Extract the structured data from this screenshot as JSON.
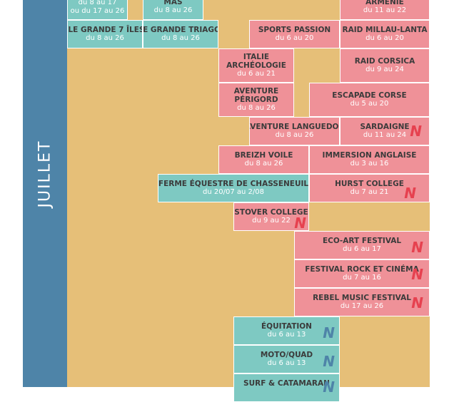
{
  "month": "JUILLET",
  "new_marker": "N",
  "colors": {
    "month_bar": "#4e84a8",
    "background": "#e6bf78",
    "pink": "#ef9198",
    "teal": "#7ec9c2",
    "new_red": "#e6414f",
    "new_blue": "#4e84a8"
  },
  "cards": [
    {
      "title": "",
      "dates": [
        "du 8 au 17",
        "ou du 17 au 26"
      ]
    },
    {
      "title": "MAS",
      "dates": [
        "du 8 au 26"
      ]
    },
    {
      "title": "ARMÉNIE",
      "dates": [
        "du 11 au 22"
      ]
    },
    {
      "title": "ÎLE GRANDE 7 ÎLES",
      "dates": [
        "du 8 au 26"
      ]
    },
    {
      "title": "ÎLE GRANDE TRIAGOZ",
      "dates": [
        "du 8 au 26"
      ]
    },
    {
      "title": "SPORTS PASSION",
      "dates": [
        "du 6 au 20"
      ]
    },
    {
      "title": "RAID MILLAU-LANTA",
      "dates": [
        "du 6 au 20"
      ]
    },
    {
      "title": "ITALIE ARCHÉOLOGIE",
      "title_lines": [
        "ITALIE",
        "ARCHÉOLOGIE"
      ],
      "dates": [
        "du 6 au 21"
      ]
    },
    {
      "title": "RAID CORSICA",
      "dates": [
        "du 9 au 24"
      ]
    },
    {
      "title": "AVENTURE PÉRIGORD",
      "title_lines": [
        "AVENTURE",
        "PÉRIGORD"
      ],
      "dates": [
        "du 8 au 26"
      ]
    },
    {
      "title": "ESCAPADE CORSE",
      "dates": [
        "du 5 au 20"
      ]
    },
    {
      "title": "AVENTURE LANGUEDOC",
      "dates": [
        "du 8 au 26"
      ]
    },
    {
      "title": "SARDAIGNE",
      "dates": [
        "du 11 au 24"
      ]
    },
    {
      "title": "BREIZH VOILE",
      "dates": [
        "du 8 au 26"
      ]
    },
    {
      "title": "IMMERSION ANGLAISE",
      "dates": [
        "du 3 au 16"
      ]
    },
    {
      "title": "FERME ÉQUESTRE DE CHASSENEUIL",
      "dates": [
        "du 20/07 au 2/08"
      ]
    },
    {
      "title": "HURST COLLEGE",
      "dates": [
        "du 7 au 21"
      ]
    },
    {
      "title": "STOVER COLLEGE",
      "dates": [
        "du 9 au 22"
      ]
    },
    {
      "title": "ECO-ART FESTIVAL",
      "dates": [
        "du 6 au 17"
      ]
    },
    {
      "title": "FESTIVAL ROCK ET CINÉMA",
      "dates": [
        "du 7 au 16"
      ]
    },
    {
      "title": "REBEL MUSIC FESTIVAL",
      "dates": [
        "du 17 au 26"
      ]
    },
    {
      "title": "ÉQUITATION",
      "dates": [
        "du 6 au 13"
      ]
    },
    {
      "title": "MOTO/QUAD",
      "dates": [
        "du 6 au 13"
      ]
    },
    {
      "title": "SURF & CATAMARAN",
      "dates": [
        ""
      ]
    }
  ]
}
